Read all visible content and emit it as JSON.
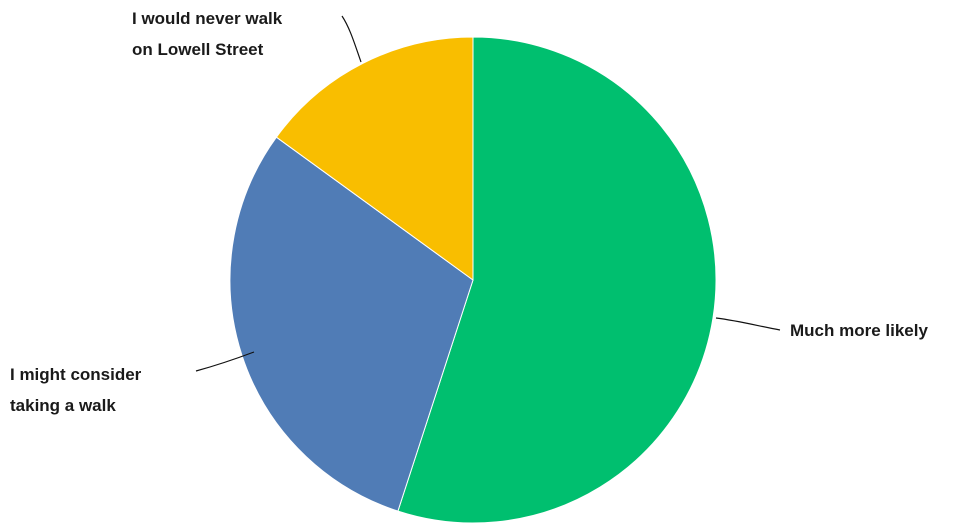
{
  "chart_data": {
    "type": "pie",
    "title": "",
    "slices": [
      {
        "label": "Much more likely",
        "value": 55,
        "color": "#00bf6f"
      },
      {
        "label": "I might consider taking a walk",
        "lines": [
          "I might consider",
          "taking a walk"
        ],
        "value": 30,
        "color": "#507cb6"
      },
      {
        "label": "I would never walk on Lowell Street",
        "lines": [
          "I would never walk",
          "on Lowell Street"
        ],
        "value": 15,
        "color": "#f9be00"
      }
    ],
    "start": "12 o'clock",
    "direction": "clockwise",
    "legend": "none"
  }
}
